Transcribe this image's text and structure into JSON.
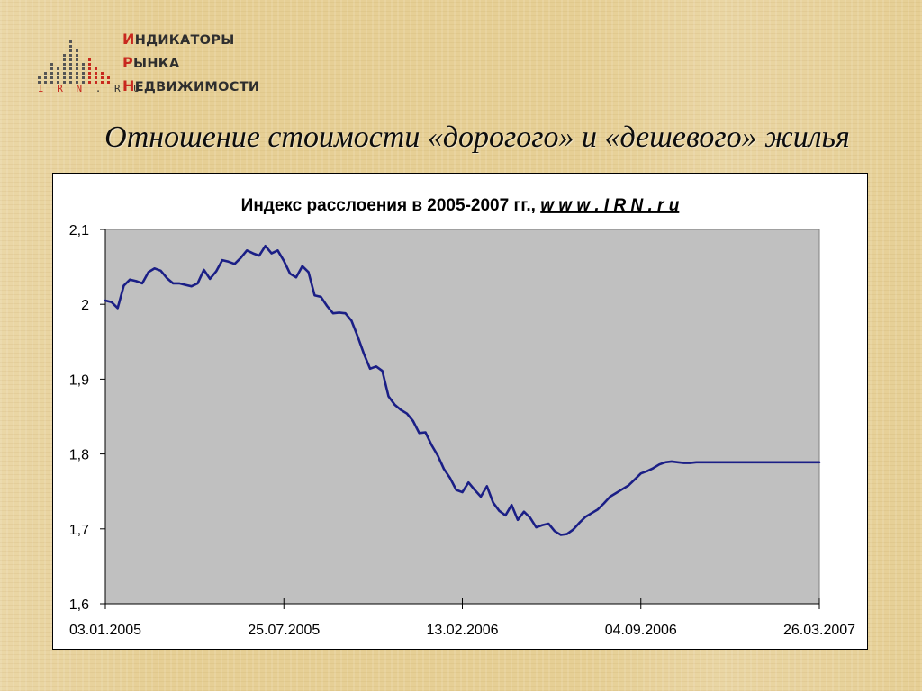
{
  "logo": {
    "lines": [
      {
        "first": "И",
        "rest": "НДИКАТОРЫ"
      },
      {
        "first": "Р",
        "rest": "ЫНКА"
      },
      {
        "first": "Н",
        "rest": "ЕДВИЖИМОСТИ"
      }
    ],
    "irn": "I R N",
    "ru": ". R U"
  },
  "heading": "Отношение стоимости «дорогого» и «дешевого» жилья",
  "colors": {
    "accent": "#c8281e",
    "line": "#1b1f86",
    "plot_bg": "#c0c0c0"
  },
  "chart_data": {
    "type": "line",
    "title": "Индекс расслоения в 2005-2007 гг.,",
    "title_link": "w w w . I R N . r u",
    "xlabel": "",
    "ylabel": "",
    "ylim": [
      1.6,
      2.1
    ],
    "y_ticks": [
      "2,1",
      "2",
      "1,9",
      "1,8",
      "1,7",
      "1,6"
    ],
    "y_tick_values": [
      2.1,
      2.0,
      1.9,
      1.8,
      1.7,
      1.6
    ],
    "x_ticks": [
      "03.01.2005",
      "25.07.2005",
      "13.02.2006",
      "04.09.2006",
      "26.03.2007"
    ],
    "x_tick_values": [
      "2005-01-03",
      "2005-07-25",
      "2006-02-13",
      "2006-09-04",
      "2007-03-26"
    ],
    "xlim": [
      "2005-01-03",
      "2007-03-26"
    ],
    "grid": false,
    "legend": "none",
    "series": [
      {
        "x": [
          "2005-01-03",
          "2005-01-10",
          "2005-01-17",
          "2005-01-24",
          "2005-01-31",
          "2005-02-07",
          "2005-02-14",
          "2005-02-21",
          "2005-02-28",
          "2005-03-07",
          "2005-03-14",
          "2005-03-21",
          "2005-03-28",
          "2005-04-04",
          "2005-04-11",
          "2005-04-18",
          "2005-04-25",
          "2005-05-02",
          "2005-05-09",
          "2005-05-16",
          "2005-05-23",
          "2005-05-30",
          "2005-06-06",
          "2005-06-13",
          "2005-06-20",
          "2005-06-27",
          "2005-07-04",
          "2005-07-11",
          "2005-07-18",
          "2005-07-25",
          "2005-08-01",
          "2005-08-08",
          "2005-08-15",
          "2005-08-22",
          "2005-08-29",
          "2005-09-05",
          "2005-09-12",
          "2005-09-19",
          "2005-09-26",
          "2005-10-03",
          "2005-10-10",
          "2005-10-17",
          "2005-10-24",
          "2005-10-31",
          "2005-11-07",
          "2005-11-14",
          "2005-11-21",
          "2005-11-28",
          "2005-12-05",
          "2005-12-12",
          "2005-12-19",
          "2005-12-26",
          "2006-01-02",
          "2006-01-09",
          "2006-01-16",
          "2006-01-23",
          "2006-01-30",
          "2006-02-06",
          "2006-02-13",
          "2006-02-20",
          "2006-02-27",
          "2006-03-06",
          "2006-03-13",
          "2006-03-20",
          "2006-03-27",
          "2006-04-03",
          "2006-04-10",
          "2006-04-17",
          "2006-04-24",
          "2006-05-01",
          "2006-05-08",
          "2006-05-15",
          "2006-05-22",
          "2006-05-29",
          "2006-06-05",
          "2006-06-12",
          "2006-06-19",
          "2006-06-26",
          "2006-07-03",
          "2006-07-10",
          "2006-07-17",
          "2006-07-24",
          "2006-07-31",
          "2006-08-07",
          "2006-08-14",
          "2006-08-21",
          "2006-08-28",
          "2006-09-04",
          "2006-09-11",
          "2006-09-18",
          "2006-09-25",
          "2006-10-02",
          "2006-10-09",
          "2006-10-16",
          "2006-10-23",
          "2006-10-30",
          "2006-11-06",
          "2006-11-13",
          "2006-11-20",
          "2006-11-27",
          "2006-12-04",
          "2006-12-11",
          "2006-12-18",
          "2006-12-25",
          "2007-01-01",
          "2007-01-08",
          "2007-01-15",
          "2007-01-22",
          "2007-01-29",
          "2007-02-05",
          "2007-02-12",
          "2007-02-19",
          "2007-02-26",
          "2007-03-05",
          "2007-03-12",
          "2007-03-19",
          "2007-03-26"
        ],
        "values": [
          2.005,
          2.003,
          1.995,
          2.025,
          2.033,
          2.031,
          2.028,
          2.043,
          2.048,
          2.045,
          2.035,
          2.028,
          2.028,
          2.026,
          2.024,
          2.028,
          2.046,
          2.034,
          2.044,
          2.059,
          2.057,
          2.054,
          2.062,
          2.072,
          2.068,
          2.065,
          2.078,
          2.068,
          2.072,
          2.058,
          2.041,
          2.036,
          2.051,
          2.043,
          2.012,
          2.01,
          1.998,
          1.988,
          1.989,
          1.988,
          1.978,
          1.957,
          1.934,
          1.914,
          1.917,
          1.911,
          1.877,
          1.866,
          1.859,
          1.854,
          1.844,
          1.828,
          1.829,
          1.812,
          1.798,
          1.78,
          1.768,
          1.752,
          1.749,
          1.762,
          1.752,
          1.743,
          1.757,
          1.735,
          1.724,
          1.718,
          1.732,
          1.712,
          1.723,
          1.715,
          1.702,
          1.705,
          1.707,
          1.697,
          1.692,
          1.693,
          1.699,
          1.708,
          1.716,
          1.721,
          1.726,
          1.734,
          1.743,
          1.748,
          1.753,
          1.758,
          1.766,
          1.774,
          1.777,
          1.781,
          1.786,
          1.789,
          1.79,
          1.789,
          1.788,
          1.788,
          1.789,
          1.789,
          1.789,
          1.789,
          1.789,
          1.789,
          1.789,
          1.789,
          1.789,
          1.789,
          1.789,
          1.789,
          1.789,
          1.789,
          1.789,
          1.789,
          1.789,
          1.789,
          1.789,
          1.789,
          1.789
        ]
      }
    ]
  }
}
